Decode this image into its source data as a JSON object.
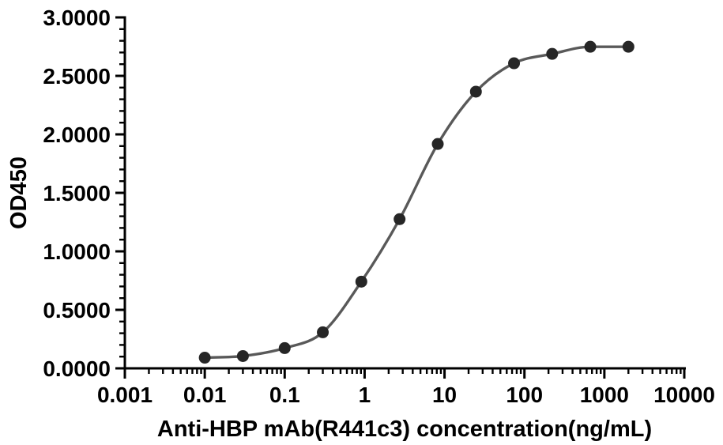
{
  "chart_data": {
    "type": "scatter",
    "title": "",
    "xlabel": "Anti-HBP mAb(R441c3) concentration(ng/mL)",
    "ylabel": "OD450",
    "x_scale": "log10",
    "x_range": [
      0.001,
      10000
    ],
    "y_range": [
      0,
      3
    ],
    "y_major_step": 0.5,
    "y_minor_step": 0.1,
    "grid": false,
    "legend": "none",
    "background_color": "#ffffff",
    "axis_color": "#000000",
    "x_major_ticks": [
      0.001,
      0.01,
      0.1,
      1,
      10,
      100,
      1000,
      10000
    ],
    "x_tick_labels": [
      "0.001",
      "0.01",
      "0.1",
      "1",
      "10",
      "100",
      "1000",
      "10000"
    ],
    "y_major_ticks": [
      0.0,
      0.5,
      1.0,
      1.5,
      2.0,
      2.5,
      3.0
    ],
    "y_tick_labels": [
      "0.0000",
      "0.5000",
      "1.0000",
      "1.5000",
      "2.0000",
      "2.5000",
      "3.0000"
    ],
    "series": [
      {
        "marker": "circle",
        "marker_color": "#262626",
        "line_color": "#595959",
        "x": [
          0.01,
          0.03,
          0.1,
          0.3,
          0.91,
          2.74,
          8.23,
          24.69,
          74.07,
          222.22,
          666.67,
          2000
        ],
        "y": [
          0.091,
          0.105,
          0.173,
          0.308,
          0.741,
          1.275,
          1.918,
          2.365,
          2.608,
          2.688,
          2.749,
          2.749
        ]
      }
    ]
  }
}
